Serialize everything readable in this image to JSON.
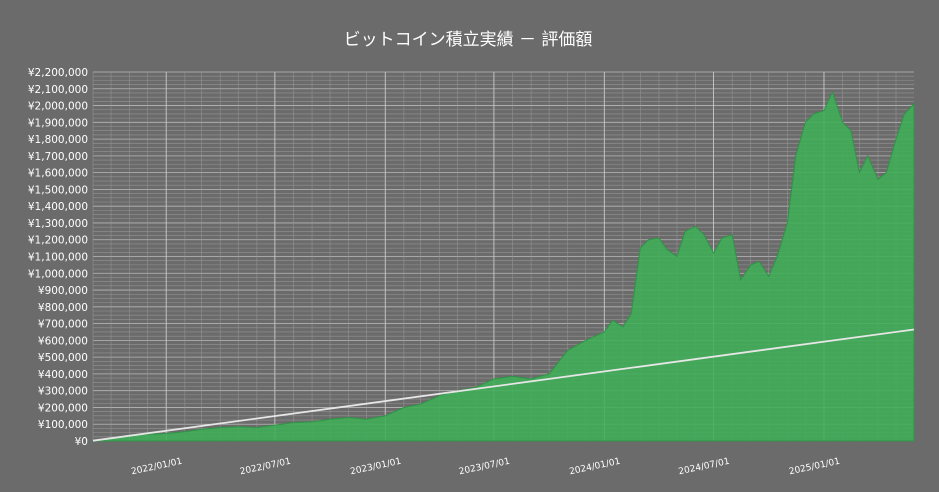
{
  "chart_data": {
    "type": "area",
    "title": "ビットコイン積立実績 － 評価額",
    "xlabel": "",
    "ylabel": "",
    "ylim": [
      0,
      2200000
    ],
    "yticks": [
      0,
      100000,
      200000,
      300000,
      400000,
      500000,
      600000,
      700000,
      800000,
      900000,
      1000000,
      1100000,
      1200000,
      1300000,
      1400000,
      1500000,
      1600000,
      1700000,
      1800000,
      1900000,
      2000000,
      2100000,
      2200000
    ],
    "ytick_labels": [
      "¥0",
      "¥100,000",
      "¥200,000",
      "¥300,000",
      "¥400,000",
      "¥500,000",
      "¥600,000",
      "¥700,000",
      "¥800,000",
      "¥900,000",
      "¥1,000,000",
      "¥1,100,000",
      "¥1,200,000",
      "¥1,300,000",
      "¥1,400,000",
      "¥1,500,000",
      "¥1,600,000",
      "¥1,700,000",
      "¥1,800,000",
      "¥1,900,000",
      "¥2,000,000",
      "¥2,100,000",
      "¥2,200,000"
    ],
    "xlim": [
      "2021-09-01",
      "2025-05-31"
    ],
    "xticks": [
      "2022-01-01",
      "2022-07-01",
      "2023-01-01",
      "2023-07-01",
      "2024-01-01",
      "2024-07-01",
      "2025-01-01"
    ],
    "xtick_labels": [
      "2022/01/01",
      "2022/07/01",
      "2023/01/01",
      "2023/07/01",
      "2024/01/01",
      "2024/07/01",
      "2025/01/01"
    ],
    "grid": true,
    "legend": "none",
    "colors": {
      "background": "#6b6b6b",
      "area_fill": "#3fae57",
      "area_edge": "#2f9446",
      "line": "#e6e6e6",
      "grid": "#9a9a9a",
      "text": "#ffffff"
    },
    "series": [
      {
        "kind": "area",
        "points": [
          [
            "2021-09-01",
            3000
          ],
          [
            "2021-10-01",
            15000
          ],
          [
            "2021-11-01",
            35000
          ],
          [
            "2021-12-01",
            40000
          ],
          [
            "2022-01-01",
            45000
          ],
          [
            "2022-02-01",
            55000
          ],
          [
            "2022-03-01",
            70000
          ],
          [
            "2022-04-01",
            80000
          ],
          [
            "2022-05-01",
            85000
          ],
          [
            "2022-06-01",
            80000
          ],
          [
            "2022-07-01",
            95000
          ],
          [
            "2022-08-01",
            110000
          ],
          [
            "2022-09-01",
            115000
          ],
          [
            "2022-10-01",
            130000
          ],
          [
            "2022-11-01",
            140000
          ],
          [
            "2022-12-01",
            130000
          ],
          [
            "2023-01-01",
            150000
          ],
          [
            "2023-02-01",
            200000
          ],
          [
            "2023-03-01",
            220000
          ],
          [
            "2023-04-01",
            270000
          ],
          [
            "2023-05-01",
            300000
          ],
          [
            "2023-06-01",
            320000
          ],
          [
            "2023-07-01",
            370000
          ],
          [
            "2023-08-01",
            385000
          ],
          [
            "2023-09-01",
            370000
          ],
          [
            "2023-10-01",
            400000
          ],
          [
            "2023-11-01",
            540000
          ],
          [
            "2023-12-01",
            600000
          ],
          [
            "2024-01-01",
            650000
          ],
          [
            "2024-01-15",
            720000
          ],
          [
            "2024-02-01",
            680000
          ],
          [
            "2024-02-15",
            760000
          ],
          [
            "2024-03-01",
            1150000
          ],
          [
            "2024-03-15",
            1200000
          ],
          [
            "2024-04-01",
            1210000
          ],
          [
            "2024-04-15",
            1140000
          ],
          [
            "2024-05-01",
            1100000
          ],
          [
            "2024-05-15",
            1250000
          ],
          [
            "2024-06-01",
            1280000
          ],
          [
            "2024-06-15",
            1230000
          ],
          [
            "2024-07-01",
            1120000
          ],
          [
            "2024-07-15",
            1210000
          ],
          [
            "2024-08-01",
            1230000
          ],
          [
            "2024-08-15",
            960000
          ],
          [
            "2024-09-01",
            1050000
          ],
          [
            "2024-09-15",
            1070000
          ],
          [
            "2024-10-01",
            980000
          ],
          [
            "2024-10-15",
            1100000
          ],
          [
            "2024-11-01",
            1300000
          ],
          [
            "2024-11-15",
            1700000
          ],
          [
            "2024-12-01",
            1900000
          ],
          [
            "2024-12-15",
            1950000
          ],
          [
            "2025-01-01",
            1970000
          ],
          [
            "2025-01-15",
            2080000
          ],
          [
            "2025-02-01",
            1900000
          ],
          [
            "2025-02-15",
            1850000
          ],
          [
            "2025-03-01",
            1600000
          ],
          [
            "2025-03-15",
            1700000
          ],
          [
            "2025-04-01",
            1560000
          ],
          [
            "2025-04-15",
            1600000
          ],
          [
            "2025-05-01",
            1800000
          ],
          [
            "2025-05-15",
            1950000
          ],
          [
            "2025-05-31",
            2010000
          ]
        ]
      },
      {
        "kind": "line",
        "points": [
          [
            "2021-09-01",
            2000
          ],
          [
            "2025-05-31",
            665000
          ]
        ]
      }
    ]
  }
}
